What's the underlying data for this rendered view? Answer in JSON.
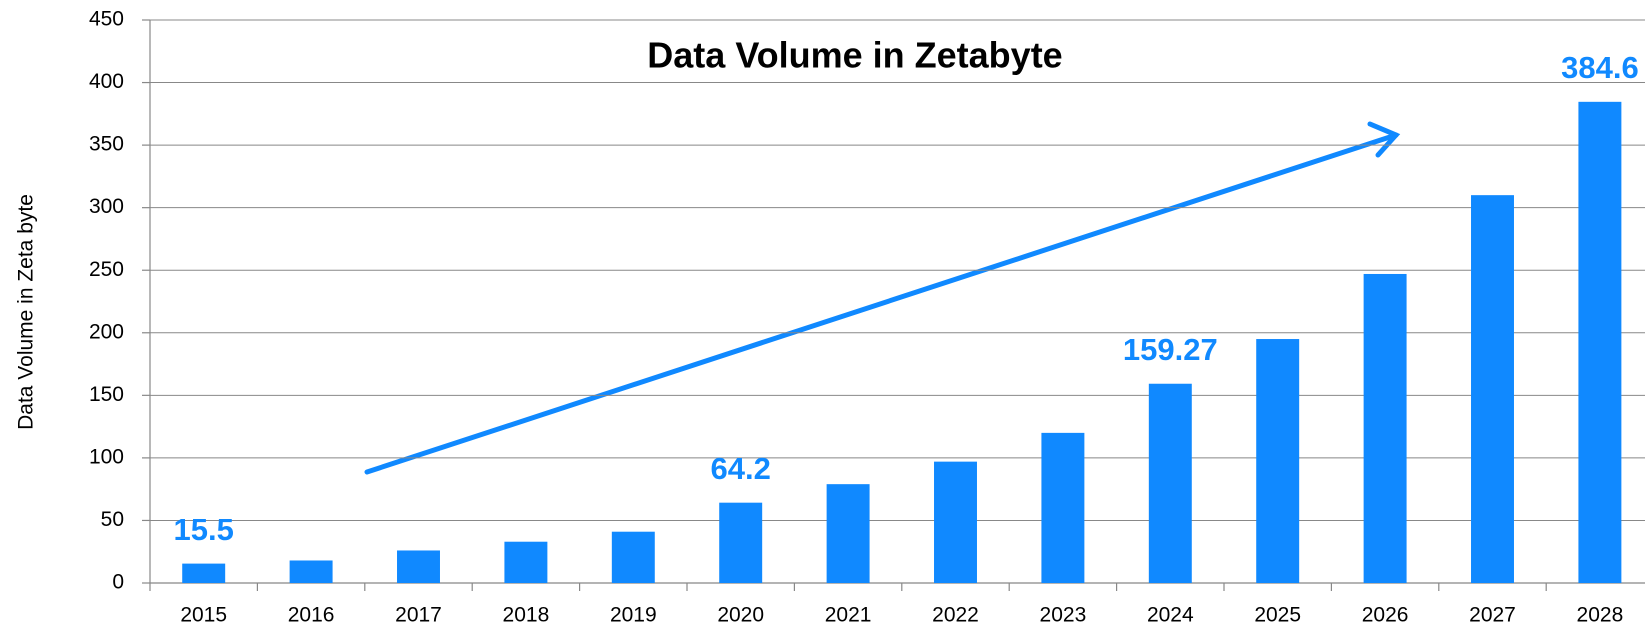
{
  "chart_data": {
    "type": "bar",
    "title": "Data Volume in Zetabyte",
    "y_label": "Data Volume in Zeta byte",
    "categories": [
      "2015",
      "2016",
      "2017",
      "2018",
      "2019",
      "2020",
      "2021",
      "2022",
      "2023",
      "2024",
      "2025",
      "2026",
      "2027",
      "2028"
    ],
    "values": [
      15.5,
      18,
      26,
      33,
      41,
      64.2,
      79,
      97,
      120,
      159.27,
      195,
      247,
      310,
      384.6
    ],
    "value_labels": [
      "15.5",
      null,
      null,
      null,
      null,
      "64.2",
      null,
      null,
      null,
      "159.27",
      null,
      null,
      null,
      "384.6"
    ],
    "color": "#1089ff",
    "ylim": [
      0,
      450
    ],
    "yticks": [
      0,
      50,
      100,
      150,
      200,
      250,
      300,
      350,
      400,
      450
    ],
    "grid": true
  }
}
